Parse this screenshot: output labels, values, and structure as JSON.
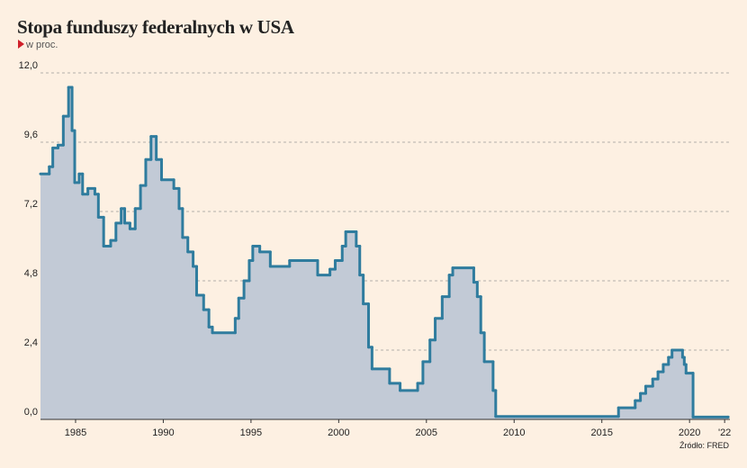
{
  "chart_data": {
    "type": "step",
    "title": "Stopa funduszy federalnych w USA",
    "subtitle": "w proc.",
    "source": "Źródło: FRED",
    "line_color": "#2f7c9e",
    "fill_color": "#c2cad6",
    "grid": true,
    "xlim": [
      1983,
      2022.3
    ],
    "xticks": [
      1985,
      1990,
      1995,
      2000,
      2005,
      2010,
      2015,
      2020,
      {
        "value": 2022,
        "label": "'22"
      }
    ],
    "ylim": [
      0,
      12
    ],
    "yticks": [
      {
        "value": 0,
        "label": "0,0"
      },
      {
        "value": 2.4,
        "label": "2,4"
      },
      {
        "value": 4.8,
        "label": "4,8"
      },
      {
        "value": 7.2,
        "label": "7,2"
      },
      {
        "value": 9.6,
        "label": "9,6"
      },
      {
        "value": 12,
        "label": "12,0"
      }
    ],
    "x": [
      1983.0,
      1983.5,
      1983.7,
      1984.0,
      1984.3,
      1984.6,
      1984.8,
      1984.95,
      1985.2,
      1985.4,
      1985.7,
      1986.1,
      1986.3,
      1986.6,
      1987.0,
      1987.3,
      1987.6,
      1987.8,
      1988.1,
      1988.4,
      1988.7,
      1989.0,
      1989.3,
      1989.6,
      1989.9,
      1990.6,
      1990.9,
      1991.1,
      1991.4,
      1991.7,
      1991.9,
      1992.3,
      1992.6,
      1992.8,
      1994.1,
      1994.3,
      1994.6,
      1994.9,
      1995.1,
      1995.5,
      1996.1,
      1997.2,
      1998.8,
      1999.5,
      1999.8,
      2000.2,
      2000.4,
      2001.0,
      2001.2,
      2001.4,
      2001.7,
      2001.9,
      2002.9,
      2003.5,
      2004.5,
      2004.8,
      2005.2,
      2005.5,
      2005.9,
      2006.3,
      2006.5,
      2007.7,
      2007.9,
      2008.1,
      2008.3,
      2008.8,
      2008.95,
      2015.95,
      2016.9,
      2017.2,
      2017.5,
      2017.9,
      2018.2,
      2018.5,
      2018.8,
      2019.0,
      2019.6,
      2019.7,
      2019.8,
      2020.2,
      2022.2
    ],
    "values": [
      8.5,
      8.75,
      9.4,
      9.5,
      10.5,
      11.5,
      10.0,
      8.2,
      8.5,
      7.8,
      8.0,
      7.8,
      7.0,
      6.0,
      6.2,
      6.8,
      7.3,
      6.8,
      6.6,
      7.3,
      8.1,
      9.0,
      9.8,
      9.0,
      8.3,
      8.0,
      7.3,
      6.3,
      5.8,
      5.3,
      4.3,
      3.8,
      3.2,
      3.0,
      3.5,
      4.2,
      4.8,
      5.5,
      6.0,
      5.8,
      5.3,
      5.5,
      5.0,
      5.2,
      5.5,
      6.0,
      6.5,
      6.0,
      5.0,
      4.0,
      2.5,
      1.75,
      1.25,
      1.0,
      1.25,
      2.0,
      2.75,
      3.5,
      4.25,
      5.0,
      5.25,
      4.75,
      4.25,
      3.0,
      2.0,
      1.0,
      0.1,
      0.4,
      0.65,
      0.9,
      1.15,
      1.4,
      1.65,
      1.9,
      2.15,
      2.4,
      2.15,
      1.9,
      1.6,
      0.08,
      0.08
    ]
  }
}
